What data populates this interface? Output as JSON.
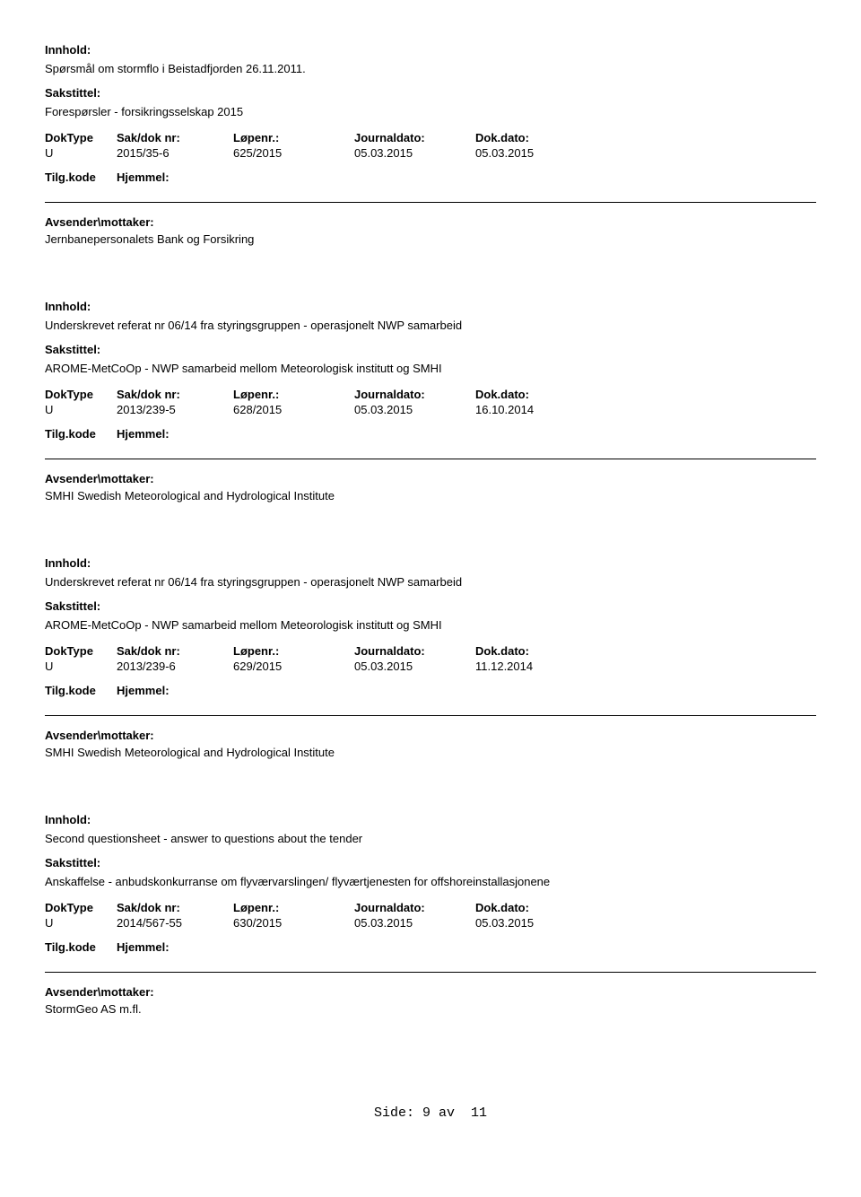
{
  "labels": {
    "innhold": "Innhold:",
    "sakstittel": "Sakstittel:",
    "doktype": "DokType",
    "sakdok": "Sak/dok nr:",
    "lopenr": "Løpenr.:",
    "journaldato": "Journaldato:",
    "dokdato": "Dok.dato:",
    "tilgkode": "Tilg.kode",
    "hjemmel": "Hjemmel:",
    "avsender": "Avsender\\mottaker:"
  },
  "records": [
    {
      "content": "Spørsmål om stormflo i Beistadfjorden 26.11.2011.",
      "case_title": "Forespørsler - forsikringsselskap 2015",
      "doktype": "U",
      "sakdok": "2015/35-6",
      "lopenr": "625/2015",
      "journaldato": "05.03.2015",
      "dokdato": "05.03.2015",
      "sender": "Jernbanepersonalets Bank og Forsikring"
    },
    {
      "content": "Underskrevet referat nr 06/14 fra styringsgruppen - operasjonelt NWP samarbeid",
      "case_title": "AROME-MetCoOp - NWP samarbeid mellom Meteorologisk institutt og SMHI",
      "doktype": "U",
      "sakdok": "2013/239-5",
      "lopenr": "628/2015",
      "journaldato": "05.03.2015",
      "dokdato": "16.10.2014",
      "sender": "SMHI Swedish Meteorological and  Hydrological Institute"
    },
    {
      "content": "Underskrevet referat nr 06/14 fra styringsgruppen - operasjonelt NWP samarbeid",
      "case_title": "AROME-MetCoOp - NWP samarbeid mellom Meteorologisk institutt og SMHI",
      "doktype": "U",
      "sakdok": "2013/239-6",
      "lopenr": "629/2015",
      "journaldato": "05.03.2015",
      "dokdato": "11.12.2014",
      "sender": "SMHI Swedish Meteorological and  Hydrological Institute"
    },
    {
      "content": "Second questionsheet - answer to questions about the tender",
      "case_title": "Anskaffelse - anbudskonkurranse om flyværvarslingen/ flyværtjenesten for offshoreinstallasjonene",
      "doktype": "U",
      "sakdok": "2014/567-55",
      "lopenr": "630/2015",
      "journaldato": "05.03.2015",
      "dokdato": "05.03.2015",
      "sender": "StormGeo AS m.fl."
    }
  ],
  "footer": {
    "side_label": "Side:",
    "page": "9",
    "av": "av",
    "total": "11"
  }
}
